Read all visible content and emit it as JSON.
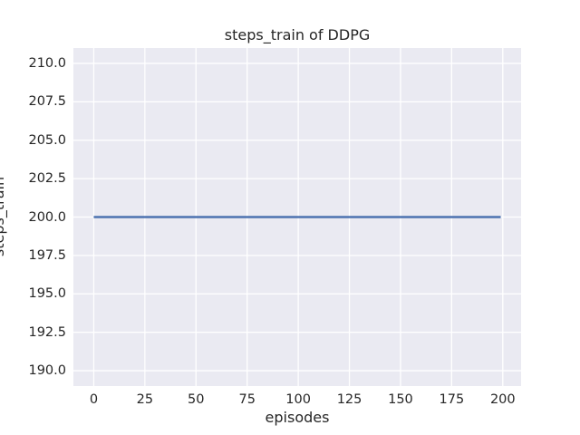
{
  "title": "steps_train of DDPG",
  "colors": {
    "figure_background": "#FFFFFF",
    "axes_background": "#EAEAF2",
    "grid": "#FFFFFF",
    "text": "#262626",
    "line": "#4C72B0"
  },
  "chart_data": {
    "type": "line",
    "title": "steps_train of DDPG",
    "xlabel": "episodes",
    "ylabel": "steps_train",
    "xlim": [
      -9.95,
      208.95
    ],
    "ylim": [
      189,
      211
    ],
    "grid": true,
    "legend": false,
    "x_tick_values": [
      0,
      25,
      50,
      75,
      100,
      125,
      150,
      175,
      200
    ],
    "x_tick_labels": [
      "0",
      "25",
      "50",
      "75",
      "100",
      "125",
      "150",
      "175",
      "200"
    ],
    "y_tick_values": [
      190.0,
      192.5,
      195.0,
      197.5,
      200.0,
      202.5,
      205.0,
      207.5,
      210.0
    ],
    "y_tick_labels": [
      "190.0",
      "192.5",
      "195.0",
      "197.5",
      "200.0",
      "202.5",
      "205.0",
      "207.5",
      "210.0"
    ],
    "series": [
      {
        "name": "steps_train",
        "color": "#4C72B0",
        "x": [
          0,
          199
        ],
        "y": [
          200,
          200
        ],
        "description": "constant 200 steps per episode for episodes 0 through 199"
      }
    ]
  }
}
